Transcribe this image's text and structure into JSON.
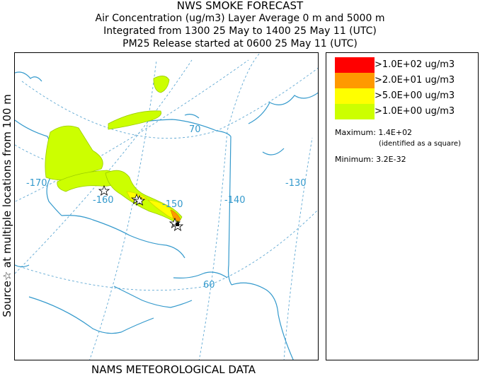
{
  "header": {
    "title": "NWS SMOKE FORECAST",
    "line2": "Air Concentration (ug/m3) Layer Average    0 m and  5000 m",
    "line3": "Integrated from 1300 25 May to 1400 25 May 11 (UTC)",
    "line4": "PM25 Release started at 0600 25 May 11 (UTC)"
  },
  "side_label": "Source☆ at multiple locations  from  100 m",
  "footer_label": "NAMS METEOROLOGICAL DATA",
  "map": {
    "graticule_labels": {
      "lat70": "70",
      "lat60": "60",
      "lon_170": "-170",
      "lon_160": "-160",
      "lon_150": "-150",
      "lon_140": "-140",
      "lon_130": "-130"
    },
    "colors": {
      "land_outline": "#3399cc",
      "graticule": "#5fa8d3",
      "level1": "#ccff00",
      "level2": "#ffff00",
      "level3": "#ff9900",
      "level4": "#ff0000",
      "source_marker": "#000000"
    }
  },
  "legend": {
    "items": [
      {
        "label": ">1.0E+02 ug/m3",
        "color": "#ff0000"
      },
      {
        "label": ">2.0E+01 ug/m3",
        "color": "#ff9900"
      },
      {
        "label": ">5.0E+00 ug/m3",
        "color": "#ffff00"
      },
      {
        "label": ">1.0E+00 ug/m3",
        "color": "#ccff00"
      }
    ],
    "maximum_label": "Maximum: 1.4E+02",
    "maximum_note": "(identified as a square)",
    "minimum_label": "Minimum: 3.2E-32"
  }
}
